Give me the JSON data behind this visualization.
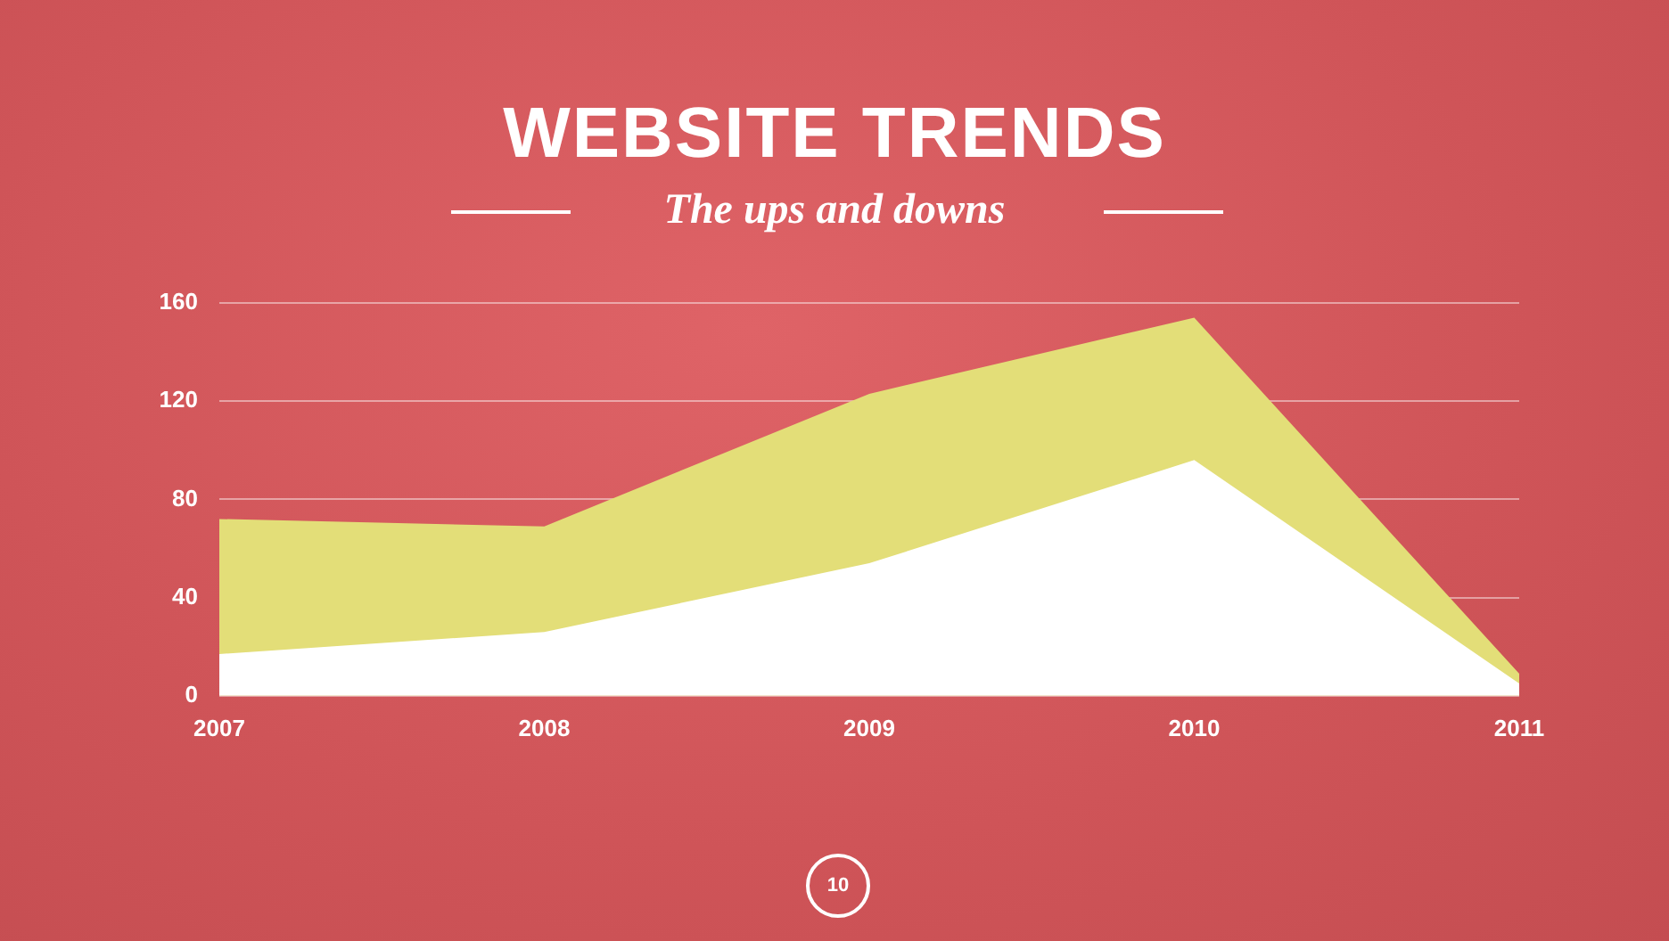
{
  "chart_data": {
    "type": "area",
    "title": "WEBSITE TRENDS",
    "subtitle": "The ups and downs",
    "categories": [
      "2007",
      "2008",
      "2009",
      "2010",
      "2011"
    ],
    "series": [
      {
        "color": "#e3de78",
        "values": [
          72,
          69,
          123,
          154,
          9
        ]
      },
      {
        "color": "#ffffff",
        "values": [
          17,
          26,
          54,
          96,
          5
        ]
      }
    ],
    "ylim": [
      0,
      160
    ],
    "yticks": [
      0,
      40,
      80,
      120,
      160
    ],
    "grid": "y",
    "legend": false,
    "marker": "none",
    "annotations": [
      "10"
    ]
  }
}
